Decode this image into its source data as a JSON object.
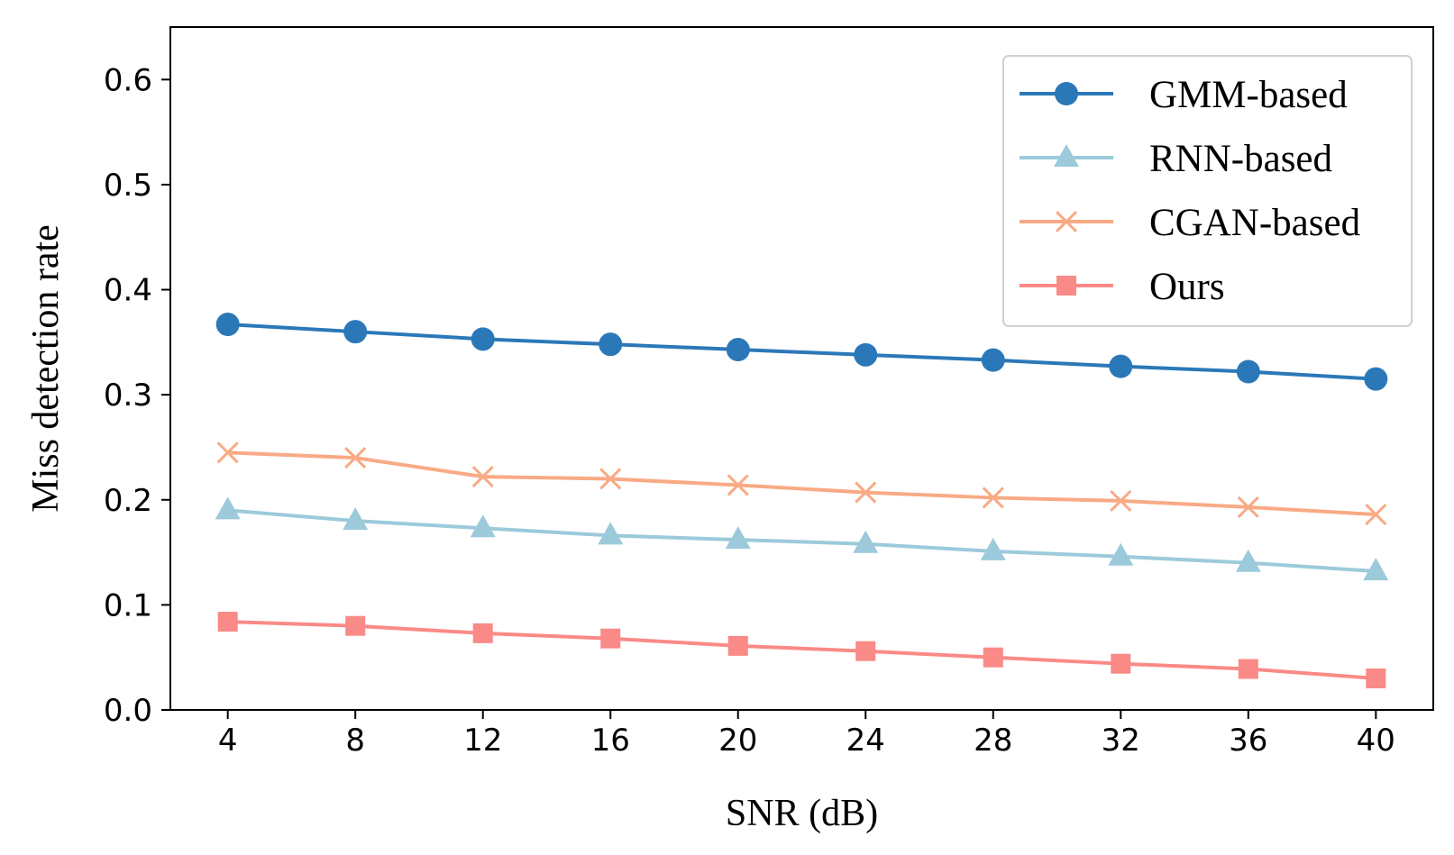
{
  "chart_data": {
    "type": "line",
    "title": "",
    "xlabel": "SNR (dB)",
    "ylabel": "Miss detection rate",
    "x": [
      4,
      8,
      12,
      16,
      20,
      24,
      28,
      32,
      36,
      40
    ],
    "xlim": [
      2.2,
      41.8
    ],
    "ylim": [
      0.0,
      0.65
    ],
    "x_ticks": [
      "4",
      "8",
      "12",
      "16",
      "20",
      "24",
      "28",
      "32",
      "36",
      "40"
    ],
    "y_ticks": [
      "0.0",
      "0.1",
      "0.2",
      "0.3",
      "0.4",
      "0.5",
      "0.6"
    ],
    "grid": false,
    "legend_position": "top-right",
    "series": [
      {
        "name": "GMM-based",
        "color": "#2b78b8",
        "marker": "circle",
        "values": [
          0.367,
          0.36,
          0.353,
          0.348,
          0.343,
          0.338,
          0.333,
          0.327,
          0.322,
          0.315
        ]
      },
      {
        "name": "RNN-based",
        "color": "#9ccadb",
        "marker": "triangle",
        "values": [
          0.19,
          0.18,
          0.173,
          0.166,
          0.162,
          0.158,
          0.151,
          0.146,
          0.14,
          0.132
        ]
      },
      {
        "name": "CGAN-based",
        "color": "#f8aa84",
        "marker": "x",
        "values": [
          0.245,
          0.24,
          0.222,
          0.22,
          0.214,
          0.207,
          0.202,
          0.199,
          0.193,
          0.186
        ]
      },
      {
        "name": "Ours",
        "color": "#fa8a87",
        "marker": "square",
        "values": [
          0.084,
          0.08,
          0.073,
          0.068,
          0.061,
          0.056,
          0.05,
          0.044,
          0.039,
          0.03
        ]
      }
    ]
  }
}
